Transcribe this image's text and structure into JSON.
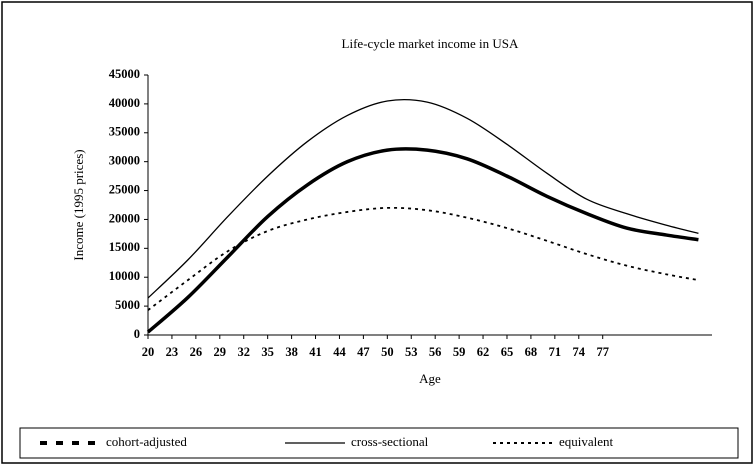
{
  "chart_data": {
    "type": "line",
    "title": "Life-cycle market income in USA",
    "xlabel": "Age",
    "ylabel": "Income (1995 prices)",
    "x": [
      20,
      25,
      30,
      35,
      40,
      45,
      50,
      55,
      60,
      65,
      70,
      75,
      80,
      85,
      89
    ],
    "series": [
      {
        "name": "cohort-adjusted",
        "color": "#000000",
        "style": "thick",
        "values": [
          500,
          6500,
          13500,
          20500,
          26000,
          30000,
          32000,
          32000,
          30500,
          27500,
          24000,
          21000,
          18500,
          17300,
          16500
        ]
      },
      {
        "name": "cross-sectional",
        "color": "#000000",
        "style": "solid",
        "values": [
          6400,
          13000,
          20500,
          27500,
          33500,
          38000,
          40500,
          40300,
          37500,
          33000,
          28000,
          23500,
          21000,
          19000,
          17600
        ]
      },
      {
        "name": "equivalent",
        "color": "#000000",
        "style": "dotted",
        "values": [
          4300,
          9500,
          14500,
          18000,
          20000,
          21300,
          22000,
          21600,
          20300,
          18500,
          16300,
          14000,
          12000,
          10500,
          9500
        ]
      }
    ],
    "xlim": [
      20,
      90.7
    ],
    "xticks": [
      20,
      23,
      26,
      29,
      32,
      35,
      38,
      41,
      44,
      47,
      50,
      53,
      56,
      59,
      62,
      65,
      68,
      71,
      74,
      77
    ],
    "ylim": [
      0,
      45000
    ],
    "yticks": [
      0,
      5000,
      10000,
      15000,
      20000,
      25000,
      30000,
      35000,
      40000,
      45000
    ],
    "legend": "bottom"
  }
}
